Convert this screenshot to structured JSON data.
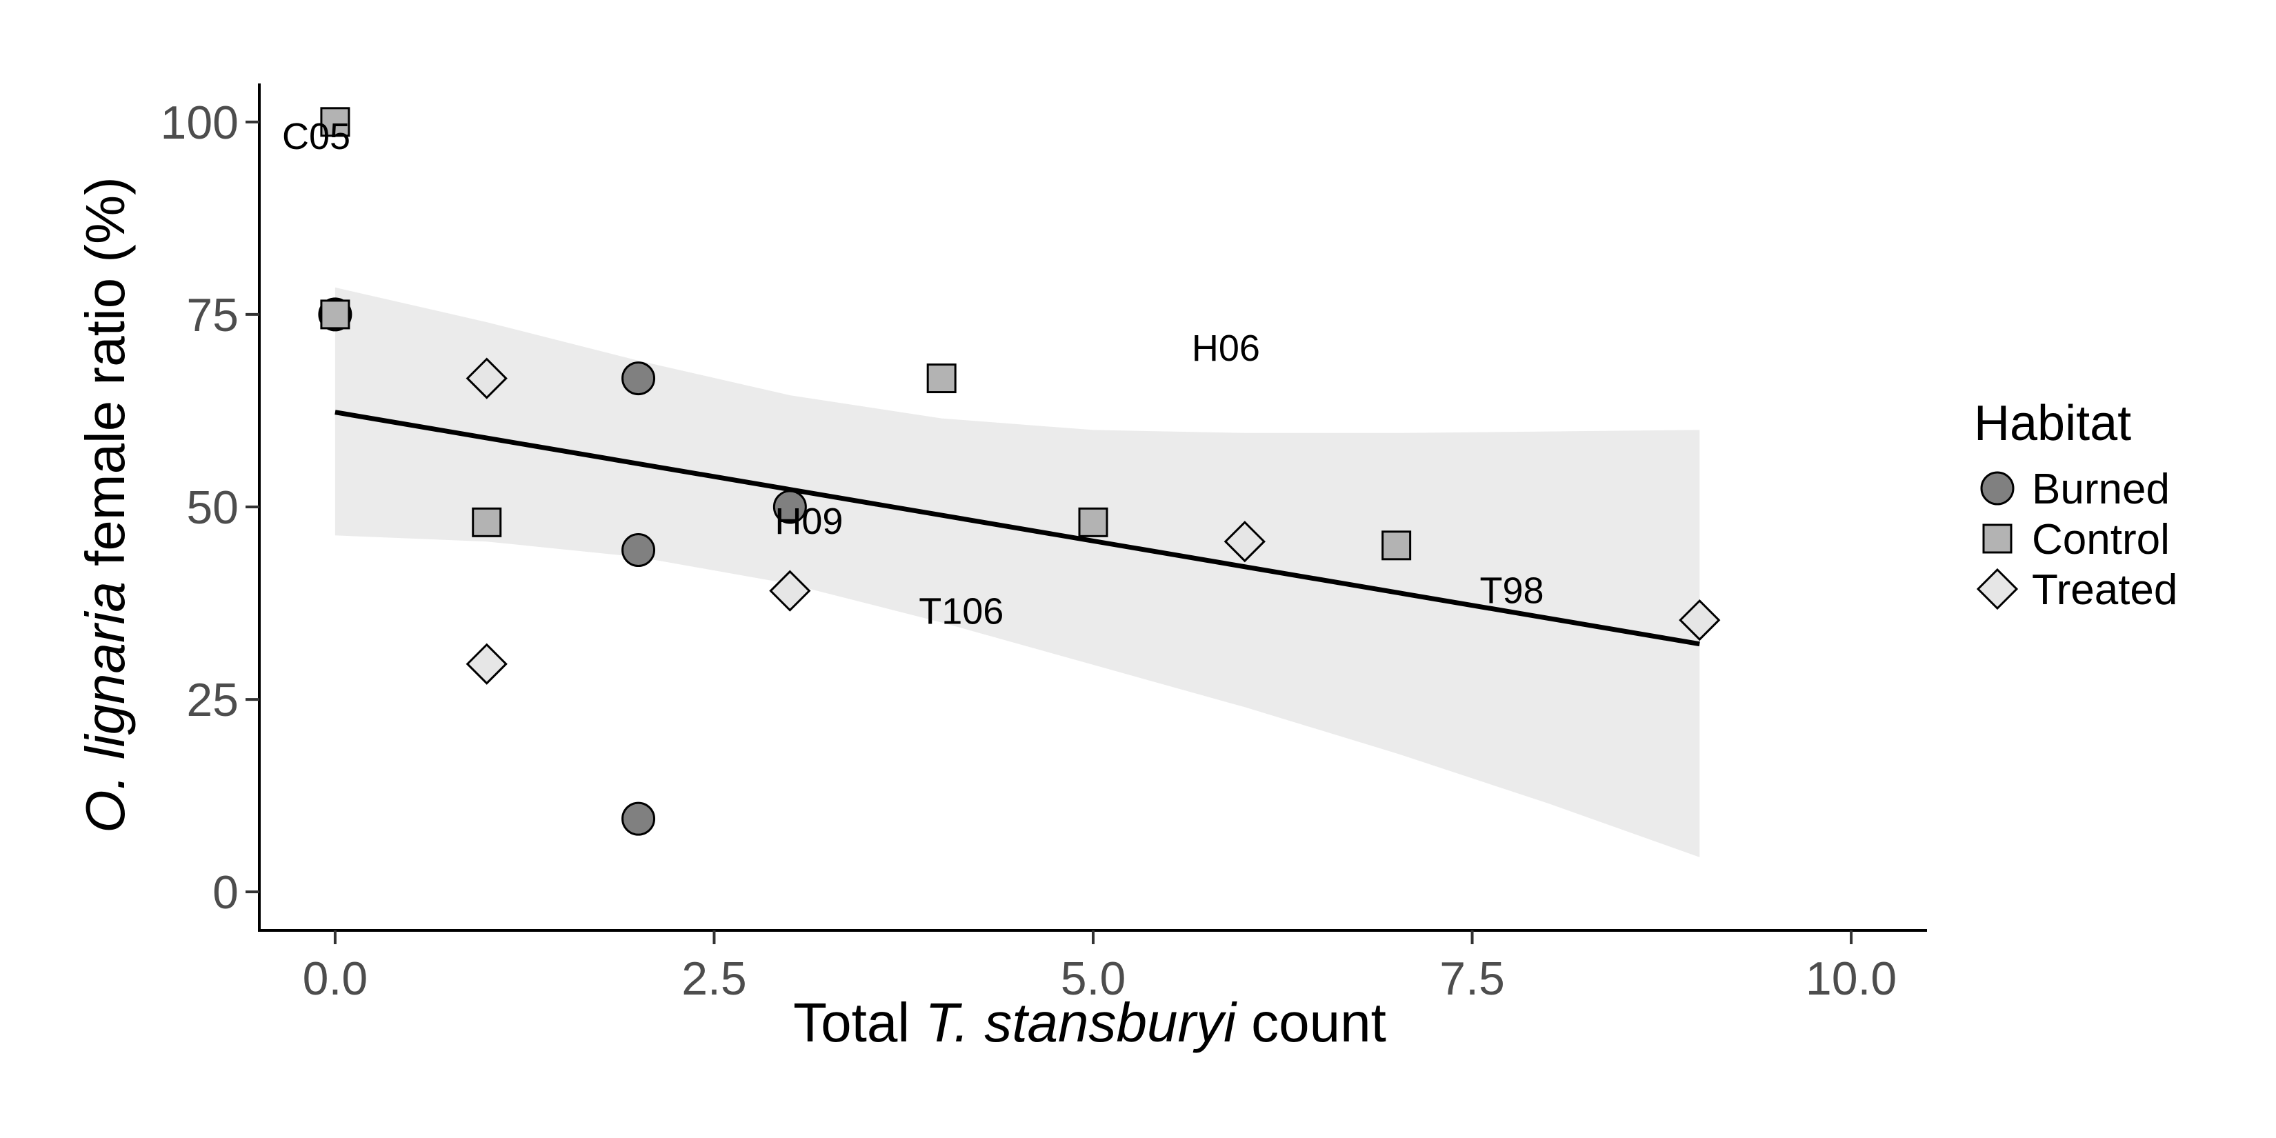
{
  "chart_data": {
    "type": "scatter",
    "xlabel": {
      "before": "Total ",
      "italic": "T. stansburyi",
      "after": " count"
    },
    "ylabel": {
      "italic": "O. lignaria",
      "after": " female ratio (%)"
    },
    "xlim": [
      -0.5,
      10.5
    ],
    "ylim": [
      -5,
      105
    ],
    "x_ticks": [
      {
        "value": 0,
        "label": "0.0"
      },
      {
        "value": 2.5,
        "label": "2.5"
      },
      {
        "value": 5,
        "label": "5.0"
      },
      {
        "value": 7.5,
        "label": "7.5"
      },
      {
        "value": 10,
        "label": "10.0"
      }
    ],
    "y_ticks": [
      {
        "value": 0,
        "label": "0"
      },
      {
        "value": 25,
        "label": "25"
      },
      {
        "value": 50,
        "label": "50"
      },
      {
        "value": 75,
        "label": "75"
      },
      {
        "value": 100,
        "label": "100"
      }
    ],
    "grid": false,
    "legend": {
      "title": "Habitat",
      "placement": "right",
      "entries": [
        {
          "name": "Burned",
          "shape": "circle",
          "color": "#808080"
        },
        {
          "name": "Control",
          "shape": "square",
          "color": "#b3b3b3"
        },
        {
          "name": "Treated",
          "shape": "diamond",
          "color": "#e6e6e6"
        }
      ]
    },
    "series": [
      {
        "name": "Burned",
        "shape": "circle",
        "color": "#808080",
        "points": [
          {
            "x": 0,
            "y": 75
          },
          {
            "x": 2,
            "y": 66.7
          },
          {
            "x": 2,
            "y": 44.4
          },
          {
            "x": 3,
            "y": 50
          },
          {
            "x": 2,
            "y": 9.5
          }
        ]
      },
      {
        "name": "Control",
        "shape": "square",
        "color": "#b3b3b3",
        "points": [
          {
            "x": 0,
            "y": 100
          },
          {
            "x": 0,
            "y": 75
          },
          {
            "x": 1,
            "y": 48
          },
          {
            "x": 4,
            "y": 66.7
          },
          {
            "x": 5,
            "y": 48
          },
          {
            "x": 7,
            "y": 45
          }
        ]
      },
      {
        "name": "Treated",
        "shape": "diamond",
        "color": "#e6e6e6",
        "points": [
          {
            "x": 1,
            "y": 66.7
          },
          {
            "x": 1,
            "y": 29.6
          },
          {
            "x": 3,
            "y": 39.1
          },
          {
            "x": 6,
            "y": 45.5
          },
          {
            "x": 9,
            "y": 35.3
          }
        ]
      }
    ],
    "fit": {
      "line": [
        {
          "x": 0,
          "y": 62.3
        },
        {
          "x": 9,
          "y": 32.2
        }
      ],
      "ci_upper": [
        {
          "x": 0,
          "y": 78.5
        },
        {
          "x": 1,
          "y": 74.0
        },
        {
          "x": 2,
          "y": 69.0
        },
        {
          "x": 3,
          "y": 64.5
        },
        {
          "x": 4,
          "y": 61.5
        },
        {
          "x": 5,
          "y": 60.0
        },
        {
          "x": 6,
          "y": 59.6
        },
        {
          "x": 7,
          "y": 59.6
        },
        {
          "x": 8,
          "y": 59.8
        },
        {
          "x": 9,
          "y": 60.0
        }
      ],
      "ci_lower": [
        {
          "x": 0,
          "y": 46.3
        },
        {
          "x": 1,
          "y": 45.5
        },
        {
          "x": 2,
          "y": 43.5
        },
        {
          "x": 3,
          "y": 40.0
        },
        {
          "x": 4,
          "y": 35.0
        },
        {
          "x": 5,
          "y": 29.5
        },
        {
          "x": 6,
          "y": 24.0
        },
        {
          "x": 7,
          "y": 18.0
        },
        {
          "x": 8,
          "y": 11.5
        },
        {
          "x": 9,
          "y": 4.5
        }
      ],
      "line_color": "#000000",
      "band_color": "#ebebeb"
    },
    "annotations": [
      {
        "text": "C05",
        "x": -0.35,
        "y": 96.5
      },
      {
        "text": "H06",
        "x": 5.65,
        "y": 69.0
      },
      {
        "text": "H09",
        "x": 2.9,
        "y": 46.5
      },
      {
        "text": "T106",
        "x": 3.85,
        "y": 34.8
      },
      {
        "text": "T98",
        "x": 7.55,
        "y": 37.5
      }
    ]
  }
}
